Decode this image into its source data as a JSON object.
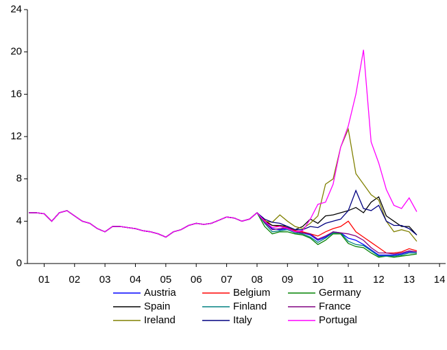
{
  "chart_data": {
    "type": "line",
    "x": [
      2001.0,
      2001.25,
      2001.5,
      2001.75,
      2002.0,
      2002.25,
      2002.5,
      2002.75,
      2003.0,
      2003.25,
      2003.5,
      2003.75,
      2004.0,
      2004.25,
      2004.5,
      2004.75,
      2005.0,
      2005.25,
      2005.5,
      2005.75,
      2006.0,
      2006.25,
      2006.5,
      2006.75,
      2007.0,
      2007.25,
      2007.5,
      2007.75,
      2008.0,
      2008.25,
      2008.5,
      2008.75,
      2009.0,
      2009.25,
      2009.5,
      2009.75,
      2010.0,
      2010.25,
      2010.5,
      2010.75,
      2011.0,
      2011.25,
      2011.5,
      2011.75,
      2012.0,
      2012.25,
      2012.5,
      2012.75,
      2013.0,
      2013.25,
      2013.5,
      2013.75
    ],
    "series": [
      {
        "name": "Austria",
        "color": "#0000ff",
        "values": [
          4.8,
          4.8,
          4.7,
          4.0,
          4.8,
          5.0,
          4.5,
          4.0,
          3.8,
          3.3,
          3.0,
          3.5,
          3.5,
          3.4,
          3.3,
          3.1,
          3.0,
          2.8,
          2.5,
          3.0,
          3.2,
          3.6,
          3.8,
          3.7,
          3.8,
          4.1,
          4.4,
          4.3,
          4.0,
          4.2,
          4.8,
          4.0,
          3.3,
          3.2,
          3.3,
          3.0,
          2.9,
          2.7,
          2.2,
          2.5,
          3.0,
          2.9,
          2.4,
          2.2,
          1.8,
          1.3,
          0.8,
          0.8,
          0.8,
          0.9,
          1.1,
          1.1
        ]
      },
      {
        "name": "Belgium",
        "color": "#ff0000",
        "values": [
          4.8,
          4.8,
          4.7,
          4.0,
          4.8,
          5.0,
          4.5,
          4.0,
          3.8,
          3.3,
          3.0,
          3.5,
          3.5,
          3.4,
          3.3,
          3.1,
          3.0,
          2.8,
          2.5,
          3.0,
          3.2,
          3.6,
          3.8,
          3.7,
          3.8,
          4.1,
          4.4,
          4.3,
          4.0,
          4.2,
          4.8,
          4.1,
          3.6,
          3.5,
          3.4,
          3.1,
          3.0,
          2.8,
          2.6,
          3.0,
          3.3,
          3.5,
          4.0,
          3.0,
          2.5,
          2.0,
          1.5,
          1.0,
          1.0,
          1.1,
          1.4,
          1.2
        ]
      },
      {
        "name": "Germany",
        "color": "#008000",
        "values": [
          4.8,
          4.8,
          4.7,
          4.0,
          4.8,
          5.0,
          4.5,
          4.0,
          3.8,
          3.3,
          3.0,
          3.5,
          3.5,
          3.4,
          3.3,
          3.1,
          3.0,
          2.8,
          2.5,
          3.0,
          3.2,
          3.6,
          3.8,
          3.7,
          3.8,
          4.1,
          4.4,
          4.3,
          4.0,
          4.2,
          4.8,
          3.5,
          2.8,
          3.0,
          3.0,
          2.8,
          2.7,
          2.4,
          1.8,
          2.2,
          2.8,
          2.8,
          1.9,
          1.6,
          1.5,
          1.0,
          0.6,
          0.7,
          0.6,
          0.7,
          0.8,
          0.9
        ]
      },
      {
        "name": "Spain",
        "color": "#000000",
        "values": [
          4.8,
          4.8,
          4.7,
          4.0,
          4.8,
          5.0,
          4.5,
          4.0,
          3.8,
          3.3,
          3.0,
          3.5,
          3.5,
          3.4,
          3.3,
          3.1,
          3.0,
          2.8,
          2.5,
          3.0,
          3.2,
          3.6,
          3.8,
          3.7,
          3.8,
          4.1,
          4.4,
          4.3,
          4.0,
          4.2,
          4.8,
          4.0,
          3.6,
          3.6,
          3.5,
          3.2,
          3.5,
          4.2,
          3.8,
          4.5,
          4.6,
          4.8,
          5.0,
          5.3,
          4.8,
          5.8,
          6.3,
          4.5,
          4.0,
          3.5,
          3.5,
          2.7
        ]
      },
      {
        "name": "Finland",
        "color": "#008080",
        "values": [
          4.8,
          4.8,
          4.7,
          4.0,
          4.8,
          5.0,
          4.5,
          4.0,
          3.8,
          3.3,
          3.0,
          3.5,
          3.5,
          3.4,
          3.3,
          3.1,
          3.0,
          2.8,
          2.5,
          3.0,
          3.2,
          3.6,
          3.8,
          3.7,
          3.8,
          4.1,
          4.4,
          4.3,
          4.0,
          4.2,
          4.8,
          3.8,
          3.0,
          3.1,
          3.2,
          2.9,
          2.8,
          2.5,
          2.0,
          2.4,
          2.9,
          2.9,
          2.1,
          1.8,
          1.7,
          1.2,
          0.7,
          0.7,
          0.7,
          0.8,
          1.0,
          1.0
        ]
      },
      {
        "name": "France",
        "color": "#800080",
        "values": [
          4.8,
          4.8,
          4.7,
          4.0,
          4.8,
          5.0,
          4.5,
          4.0,
          3.8,
          3.3,
          3.0,
          3.5,
          3.5,
          3.4,
          3.3,
          3.1,
          3.0,
          2.8,
          2.5,
          3.0,
          3.2,
          3.6,
          3.8,
          3.7,
          3.8,
          4.1,
          4.4,
          4.3,
          4.0,
          4.2,
          4.8,
          3.9,
          3.2,
          3.3,
          3.4,
          3.0,
          2.9,
          2.8,
          2.3,
          2.6,
          3.0,
          2.9,
          2.8,
          2.6,
          2.2,
          1.5,
          1.0,
          1.0,
          0.9,
          1.0,
          1.2,
          1.1
        ]
      },
      {
        "name": "Ireland",
        "color": "#808000",
        "values": [
          4.8,
          4.8,
          4.7,
          4.0,
          4.8,
          5.0,
          4.5,
          4.0,
          3.8,
          3.3,
          3.0,
          3.5,
          3.5,
          3.4,
          3.3,
          3.1,
          3.0,
          2.8,
          2.5,
          3.0,
          3.2,
          3.6,
          3.8,
          3.7,
          3.8,
          4.1,
          4.4,
          4.3,
          4.0,
          4.2,
          4.8,
          4.0,
          3.9,
          4.6,
          4.0,
          3.5,
          3.3,
          3.8,
          4.5,
          7.5,
          8.0,
          11.0,
          12.7,
          8.5,
          7.5,
          6.5,
          6.0,
          4.0,
          3.0,
          3.2,
          3.0,
          2.1
        ]
      },
      {
        "name": "Italy",
        "color": "#000080",
        "values": [
          4.8,
          4.8,
          4.7,
          4.0,
          4.8,
          5.0,
          4.5,
          4.0,
          3.8,
          3.3,
          3.0,
          3.5,
          3.5,
          3.4,
          3.3,
          3.1,
          3.0,
          2.8,
          2.5,
          3.0,
          3.2,
          3.6,
          3.8,
          3.7,
          3.8,
          4.1,
          4.4,
          4.3,
          4.0,
          4.2,
          4.8,
          4.2,
          3.9,
          3.8,
          3.5,
          3.2,
          3.2,
          3.5,
          3.4,
          3.8,
          4.0,
          4.2,
          5.0,
          6.9,
          5.2,
          5.0,
          5.5,
          4.0,
          3.6,
          3.6,
          3.3,
          2.7
        ]
      },
      {
        "name": "Portugal",
        "color": "#ff00ff",
        "values": [
          4.8,
          4.8,
          4.7,
          4.0,
          4.8,
          5.0,
          4.5,
          4.0,
          3.8,
          3.3,
          3.0,
          3.5,
          3.5,
          3.4,
          3.3,
          3.1,
          3.0,
          2.8,
          2.5,
          3.0,
          3.2,
          3.6,
          3.8,
          3.7,
          3.8,
          4.1,
          4.4,
          4.3,
          4.0,
          4.2,
          4.8,
          4.0,
          3.4,
          3.5,
          3.3,
          3.0,
          3.1,
          4.2,
          5.6,
          5.8,
          7.5,
          11.0,
          13.0,
          16.0,
          20.2,
          11.5,
          9.5,
          7.0,
          5.5,
          5.2,
          6.2,
          4.9
        ]
      }
    ],
    "xlim": [
      2000.95,
      2014.7
    ],
    "xticks": [
      {
        "value": 2001.5,
        "label": "01"
      },
      {
        "value": 2002.5,
        "label": "02"
      },
      {
        "value": 2003.5,
        "label": "03"
      },
      {
        "value": 2004.5,
        "label": "04"
      },
      {
        "value": 2005.5,
        "label": "05"
      },
      {
        "value": 2006.5,
        "label": "06"
      },
      {
        "value": 2007.5,
        "label": "07"
      },
      {
        "value": 2008.5,
        "label": "08"
      },
      {
        "value": 2009.5,
        "label": "09"
      },
      {
        "value": 2010.5,
        "label": "10"
      },
      {
        "value": 2011.5,
        "label": "11"
      },
      {
        "value": 2012.5,
        "label": "12"
      },
      {
        "value": 2013.5,
        "label": "13"
      },
      {
        "value": 2014.5,
        "label": "14"
      }
    ],
    "ylim": [
      0,
      24
    ],
    "yticks": [
      0,
      4,
      8,
      12,
      16,
      20,
      24
    ]
  }
}
